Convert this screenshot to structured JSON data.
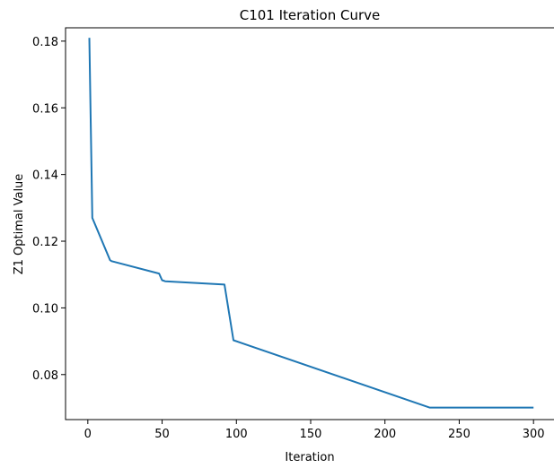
{
  "chart_data": {
    "type": "line",
    "title": "C101 Iteration Curve",
    "xlabel": "Iteration",
    "ylabel": "Z1 Optimal Value",
    "xlim": [
      -15,
      315
    ],
    "ylim": [
      0.0665,
      0.184
    ],
    "xticks": [
      0,
      50,
      100,
      150,
      200,
      250,
      300
    ],
    "yticks": [
      0.08,
      0.1,
      0.12,
      0.14,
      0.16,
      0.18
    ],
    "ytick_labels": [
      "0.08",
      "0.10",
      "0.12",
      "0.14",
      "0.16",
      "0.18"
    ],
    "grid": false,
    "series": [
      {
        "color": "#1f77b4",
        "x": [
          1,
          3,
          15,
          16,
          48,
          50,
          52,
          92,
          98,
          230,
          300
        ],
        "y": [
          0.181,
          0.127,
          0.1143,
          0.114,
          0.1103,
          0.1083,
          0.108,
          0.107,
          0.0903,
          0.0701,
          0.0701
        ]
      }
    ]
  }
}
